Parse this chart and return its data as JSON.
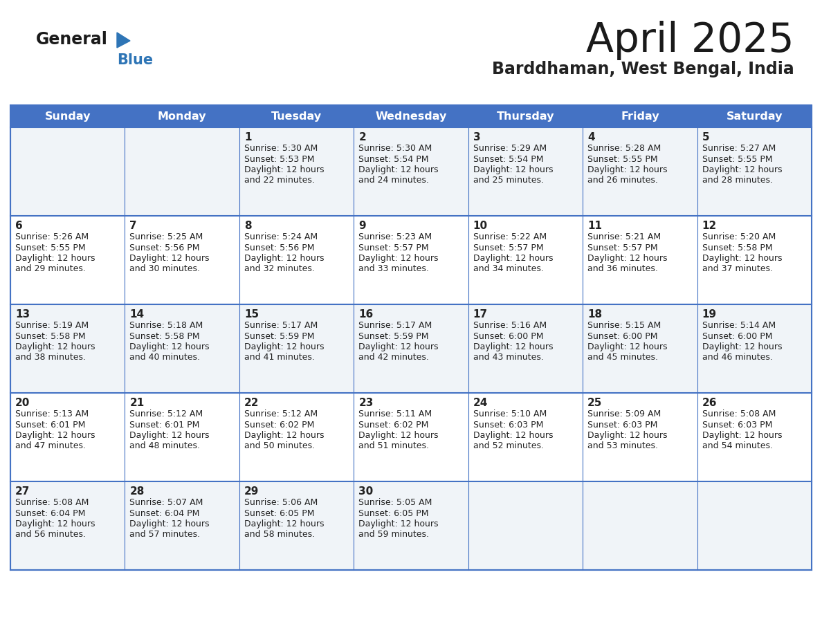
{
  "title": "April 2025",
  "subtitle": "Barddhaman, West Bengal, India",
  "days_of_week": [
    "Sunday",
    "Monday",
    "Tuesday",
    "Wednesday",
    "Thursday",
    "Friday",
    "Saturday"
  ],
  "header_bg": "#4472C4",
  "header_text": "#FFFFFF",
  "cell_bg_even": "#F0F4F8",
  "cell_bg_odd": "#FFFFFF",
  "border_color": "#4472C4",
  "text_color": "#222222",
  "day_num_color": "#222222",
  "title_color": "#1a1a1a",
  "subtitle_color": "#222222",
  "logo_general_color": "#1a1a1a",
  "logo_blue_color": "#2E75B6",
  "weeks": [
    [
      {
        "day": null,
        "info": ""
      },
      {
        "day": null,
        "info": ""
      },
      {
        "day": 1,
        "info": "Sunrise: 5:30 AM\nSunset: 5:53 PM\nDaylight: 12 hours\nand 22 minutes."
      },
      {
        "day": 2,
        "info": "Sunrise: 5:30 AM\nSunset: 5:54 PM\nDaylight: 12 hours\nand 24 minutes."
      },
      {
        "day": 3,
        "info": "Sunrise: 5:29 AM\nSunset: 5:54 PM\nDaylight: 12 hours\nand 25 minutes."
      },
      {
        "day": 4,
        "info": "Sunrise: 5:28 AM\nSunset: 5:55 PM\nDaylight: 12 hours\nand 26 minutes."
      },
      {
        "day": 5,
        "info": "Sunrise: 5:27 AM\nSunset: 5:55 PM\nDaylight: 12 hours\nand 28 minutes."
      }
    ],
    [
      {
        "day": 6,
        "info": "Sunrise: 5:26 AM\nSunset: 5:55 PM\nDaylight: 12 hours\nand 29 minutes."
      },
      {
        "day": 7,
        "info": "Sunrise: 5:25 AM\nSunset: 5:56 PM\nDaylight: 12 hours\nand 30 minutes."
      },
      {
        "day": 8,
        "info": "Sunrise: 5:24 AM\nSunset: 5:56 PM\nDaylight: 12 hours\nand 32 minutes."
      },
      {
        "day": 9,
        "info": "Sunrise: 5:23 AM\nSunset: 5:57 PM\nDaylight: 12 hours\nand 33 minutes."
      },
      {
        "day": 10,
        "info": "Sunrise: 5:22 AM\nSunset: 5:57 PM\nDaylight: 12 hours\nand 34 minutes."
      },
      {
        "day": 11,
        "info": "Sunrise: 5:21 AM\nSunset: 5:57 PM\nDaylight: 12 hours\nand 36 minutes."
      },
      {
        "day": 12,
        "info": "Sunrise: 5:20 AM\nSunset: 5:58 PM\nDaylight: 12 hours\nand 37 minutes."
      }
    ],
    [
      {
        "day": 13,
        "info": "Sunrise: 5:19 AM\nSunset: 5:58 PM\nDaylight: 12 hours\nand 38 minutes."
      },
      {
        "day": 14,
        "info": "Sunrise: 5:18 AM\nSunset: 5:58 PM\nDaylight: 12 hours\nand 40 minutes."
      },
      {
        "day": 15,
        "info": "Sunrise: 5:17 AM\nSunset: 5:59 PM\nDaylight: 12 hours\nand 41 minutes."
      },
      {
        "day": 16,
        "info": "Sunrise: 5:17 AM\nSunset: 5:59 PM\nDaylight: 12 hours\nand 42 minutes."
      },
      {
        "day": 17,
        "info": "Sunrise: 5:16 AM\nSunset: 6:00 PM\nDaylight: 12 hours\nand 43 minutes."
      },
      {
        "day": 18,
        "info": "Sunrise: 5:15 AM\nSunset: 6:00 PM\nDaylight: 12 hours\nand 45 minutes."
      },
      {
        "day": 19,
        "info": "Sunrise: 5:14 AM\nSunset: 6:00 PM\nDaylight: 12 hours\nand 46 minutes."
      }
    ],
    [
      {
        "day": 20,
        "info": "Sunrise: 5:13 AM\nSunset: 6:01 PM\nDaylight: 12 hours\nand 47 minutes."
      },
      {
        "day": 21,
        "info": "Sunrise: 5:12 AM\nSunset: 6:01 PM\nDaylight: 12 hours\nand 48 minutes."
      },
      {
        "day": 22,
        "info": "Sunrise: 5:12 AM\nSunset: 6:02 PM\nDaylight: 12 hours\nand 50 minutes."
      },
      {
        "day": 23,
        "info": "Sunrise: 5:11 AM\nSunset: 6:02 PM\nDaylight: 12 hours\nand 51 minutes."
      },
      {
        "day": 24,
        "info": "Sunrise: 5:10 AM\nSunset: 6:03 PM\nDaylight: 12 hours\nand 52 minutes."
      },
      {
        "day": 25,
        "info": "Sunrise: 5:09 AM\nSunset: 6:03 PM\nDaylight: 12 hours\nand 53 minutes."
      },
      {
        "day": 26,
        "info": "Sunrise: 5:08 AM\nSunset: 6:03 PM\nDaylight: 12 hours\nand 54 minutes."
      }
    ],
    [
      {
        "day": 27,
        "info": "Sunrise: 5:08 AM\nSunset: 6:04 PM\nDaylight: 12 hours\nand 56 minutes."
      },
      {
        "day": 28,
        "info": "Sunrise: 5:07 AM\nSunset: 6:04 PM\nDaylight: 12 hours\nand 57 minutes."
      },
      {
        "day": 29,
        "info": "Sunrise: 5:06 AM\nSunset: 6:05 PM\nDaylight: 12 hours\nand 58 minutes."
      },
      {
        "day": 30,
        "info": "Sunrise: 5:05 AM\nSunset: 6:05 PM\nDaylight: 12 hours\nand 59 minutes."
      },
      {
        "day": null,
        "info": ""
      },
      {
        "day": null,
        "info": ""
      },
      {
        "day": null,
        "info": ""
      }
    ]
  ]
}
